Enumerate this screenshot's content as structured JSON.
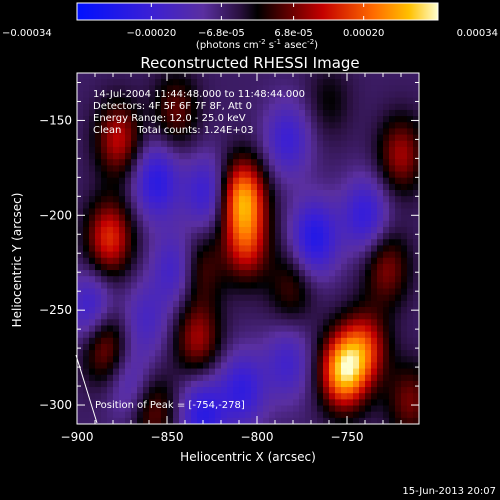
{
  "chart_data": {
    "type": "heatmap",
    "title": "Reconstructed RHESSI Image",
    "xlabel": "Heliocentric X (arcsec)",
    "ylabel": "Heliocentric Y (arcsec)",
    "xlim": [
      -900,
      -710
    ],
    "ylim": [
      -310,
      -125
    ],
    "x_ticks": [
      -900,
      -850,
      -800,
      -750
    ],
    "y_ticks": [
      -300,
      -250,
      -200,
      -150
    ],
    "colorbar": {
      "range": [
        -0.00034,
        0.00034
      ],
      "tick_labels": [
        "-0.00034",
        "-0.00020",
        "-6.8e-05",
        "6.8e-05",
        "0.00020",
        "0.00034"
      ],
      "tick_values": [
        -0.00034,
        -0.0002,
        -6.8e-05,
        6.8e-05,
        0.0002,
        0.00034
      ],
      "units_line1": "(photons cm",
      "units_exp1": "-2",
      "units_line2": " s",
      "units_exp2": "-1",
      "units_line3": " asec",
      "units_exp3": "-2",
      "units_close": ")"
    },
    "info_lines": [
      "14-Jul-2004 11:44:48.000 to 11:48:44.000",
      "Detectors: 4F 5F 6F 7F 8F, Att 0",
      "Energy Range: 12.0 - 25.0 keV",
      "Clean     Total counts: 1.24E+03"
    ],
    "peak_label": "Position of Peak = [-754,-278]",
    "peak_position": [
      -754,
      -278
    ],
    "sources": [
      {
        "x": -808,
        "y": -190,
        "value": 0.0003
      },
      {
        "x": -806,
        "y": -215,
        "value": 0.0002
      },
      {
        "x": -752,
        "y": -282,
        "value": 0.00034
      },
      {
        "x": -877,
        "y": -160,
        "value": 0.00018
      },
      {
        "x": -882,
        "y": -212,
        "value": 0.00022
      },
      {
        "x": -885,
        "y": -268,
        "value": 0.00017
      },
      {
        "x": -720,
        "y": -168,
        "value": 0.00016
      },
      {
        "x": -728,
        "y": -228,
        "value": 0.00014
      },
      {
        "x": -740,
        "y": -270,
        "value": 0.0002
      },
      {
        "x": -833,
        "y": -265,
        "value": 0.00016
      },
      {
        "x": -845,
        "y": -145,
        "value": 0.00012
      },
      {
        "x": -832,
        "y": -228,
        "value": 0.00012
      },
      {
        "x": -858,
        "y": -303,
        "value": 0.00013
      },
      {
        "x": -781,
        "y": -238,
        "value": 0.0001
      },
      {
        "x": -715,
        "y": -298,
        "value": 0.00013
      },
      {
        "x": -760,
        "y": -140,
        "value": 6e-05
      },
      {
        "x": -856,
        "y": -182,
        "value": -0.00018
      },
      {
        "x": -828,
        "y": -188,
        "value": -0.00015
      },
      {
        "x": -768,
        "y": -212,
        "value": -0.0002
      },
      {
        "x": -783,
        "y": -160,
        "value": -0.00014
      },
      {
        "x": -892,
        "y": -250,
        "value": -0.00016
      },
      {
        "x": -862,
        "y": -255,
        "value": -0.0001
      },
      {
        "x": -808,
        "y": -292,
        "value": -0.00016
      },
      {
        "x": -830,
        "y": -305,
        "value": -0.00018
      },
      {
        "x": -740,
        "y": -200,
        "value": -0.00016
      },
      {
        "x": -783,
        "y": -278,
        "value": -0.00012
      },
      {
        "x": -845,
        "y": -228,
        "value": -0.00014
      },
      {
        "x": -870,
        "y": -290,
        "value": -0.0001
      }
    ]
  },
  "footer": {
    "timestamp": "15-Jun-2013 20:07"
  }
}
